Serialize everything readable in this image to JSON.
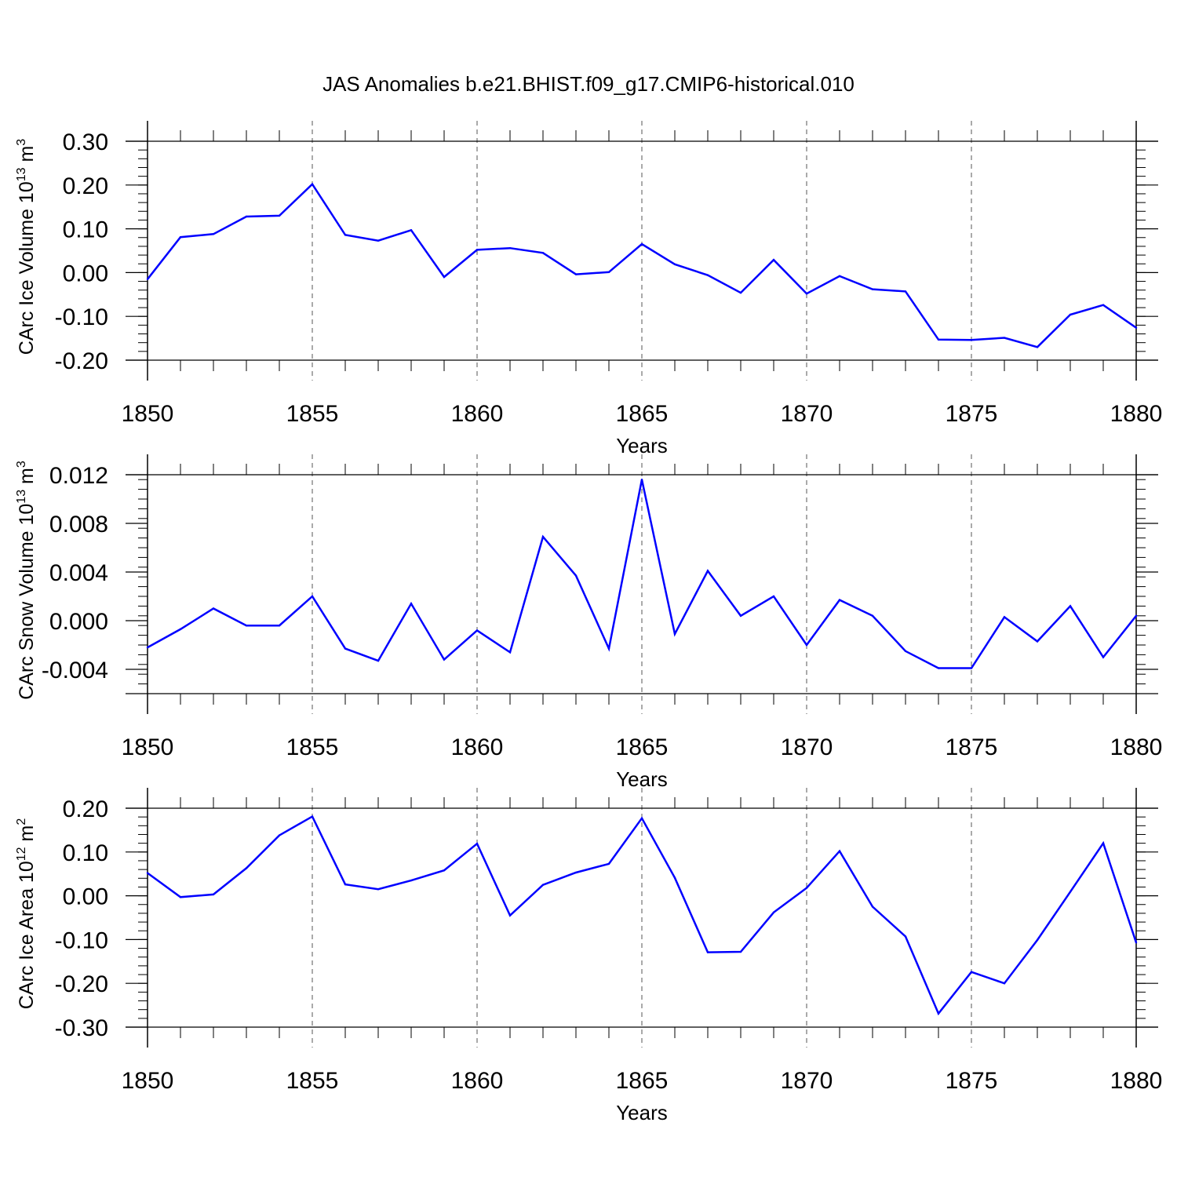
{
  "title": "JAS Anomalies b.e21.BHIST.f09_g17.CMIP6-historical.010",
  "colors": {
    "line": "#0000ff",
    "axis": "#000000",
    "grid": "#555555"
  },
  "chart_data": [
    {
      "type": "line",
      "ylabel_main": "CArc Ice Volume 10",
      "ylabel_exp": "13",
      "ylabel_unit": " m",
      "ylabel_unit_exp": "3",
      "xlabel": "Years",
      "xlim": [
        1850,
        1880
      ],
      "ylim": [
        -0.2,
        0.3
      ],
      "ytick_values": [
        -0.2,
        -0.1,
        0.0,
        0.1,
        0.2,
        0.3
      ],
      "ytick_labels": [
        "-0.20",
        "-0.10",
        "0.00",
        "0.10",
        "0.20",
        "0.30"
      ],
      "xtick_values": [
        1850,
        1855,
        1860,
        1865,
        1870,
        1875,
        1880
      ],
      "xtick_labels": [
        "1850",
        "1855",
        "1860",
        "1865",
        "1870",
        "1875",
        "1880"
      ],
      "x": [
        1850,
        1851,
        1852,
        1853,
        1854,
        1855,
        1856,
        1857,
        1858,
        1859,
        1860,
        1861,
        1862,
        1863,
        1864,
        1865,
        1866,
        1867,
        1868,
        1869,
        1870,
        1871,
        1872,
        1873,
        1874,
        1875,
        1876,
        1877,
        1878,
        1879,
        1880
      ],
      "y": [
        -0.015,
        0.081,
        0.088,
        0.128,
        0.13,
        0.202,
        0.086,
        0.073,
        0.097,
        -0.01,
        0.052,
        0.056,
        0.045,
        -0.004,
        0.001,
        0.065,
        0.019,
        -0.006,
        -0.046,
        0.029,
        -0.048,
        -0.008,
        -0.038,
        -0.043,
        -0.153,
        -0.154,
        -0.149,
        -0.17,
        -0.096,
        -0.074,
        -0.126
      ]
    },
    {
      "type": "line",
      "ylabel_main": "CArc Snow Volume 10",
      "ylabel_exp": "13",
      "ylabel_unit": " m",
      "ylabel_unit_exp": "3",
      "xlabel": "Years",
      "xlim": [
        1850,
        1880
      ],
      "ylim": [
        -0.006,
        0.012
      ],
      "ytick_values": [
        -0.004,
        0.0,
        0.004,
        0.008,
        0.012
      ],
      "ytick_labels": [
        "-0.004",
        "0.000",
        "0.004",
        "0.008",
        "0.012"
      ],
      "xtick_values": [
        1850,
        1855,
        1860,
        1865,
        1870,
        1875,
        1880
      ],
      "xtick_labels": [
        "1850",
        "1855",
        "1860",
        "1865",
        "1870",
        "1875",
        "1880"
      ],
      "x": [
        1850,
        1851,
        1852,
        1853,
        1854,
        1855,
        1856,
        1857,
        1858,
        1859,
        1860,
        1861,
        1862,
        1863,
        1864,
        1865,
        1866,
        1867,
        1868,
        1869,
        1870,
        1871,
        1872,
        1873,
        1874,
        1875,
        1876,
        1877,
        1878,
        1879,
        1880
      ],
      "y": [
        -0.0022,
        -0.0007,
        0.001,
        -0.0004,
        -0.0004,
        0.002,
        -0.0023,
        -0.0033,
        0.0014,
        -0.0032,
        -0.0008,
        -0.0026,
        0.0069,
        0.0037,
        -0.0023,
        0.0116,
        -0.0011,
        0.0041,
        0.0004,
        0.002,
        -0.002,
        0.0017,
        0.0004,
        -0.0025,
        -0.0039,
        -0.0039,
        0.0003,
        -0.0017,
        0.0012,
        -0.003,
        0.0004
      ]
    },
    {
      "type": "line",
      "ylabel_main": "CArc Ice Area 10",
      "ylabel_exp": "12",
      "ylabel_unit": " m",
      "ylabel_unit_exp": "2",
      "xlabel": "Years",
      "xlim": [
        1850,
        1880
      ],
      "ylim": [
        -0.3,
        0.2
      ],
      "ytick_values": [
        -0.3,
        -0.2,
        -0.1,
        0.0,
        0.1,
        0.2
      ],
      "ytick_labels": [
        "-0.30",
        "-0.20",
        "-0.10",
        "0.00",
        "0.10",
        "0.20"
      ],
      "xtick_values": [
        1850,
        1855,
        1860,
        1865,
        1870,
        1875,
        1880
      ],
      "xtick_labels": [
        "1850",
        "1855",
        "1860",
        "1865",
        "1870",
        "1875",
        "1880"
      ],
      "x": [
        1850,
        1851,
        1852,
        1853,
        1854,
        1855,
        1856,
        1857,
        1858,
        1859,
        1860,
        1861,
        1862,
        1863,
        1864,
        1865,
        1866,
        1867,
        1868,
        1869,
        1870,
        1871,
        1872,
        1873,
        1874,
        1875,
        1876,
        1877,
        1878,
        1879,
        1880
      ],
      "y": [
        0.052,
        -0.003,
        0.003,
        0.063,
        0.138,
        0.181,
        0.026,
        0.015,
        0.035,
        0.058,
        0.119,
        -0.045,
        0.025,
        0.053,
        0.073,
        0.177,
        0.041,
        -0.129,
        -0.128,
        -0.038,
        0.018,
        0.102,
        -0.025,
        -0.093,
        -0.269,
        -0.174,
        -0.2,
        -0.101,
        0.009,
        0.12,
        -0.107
      ]
    }
  ]
}
